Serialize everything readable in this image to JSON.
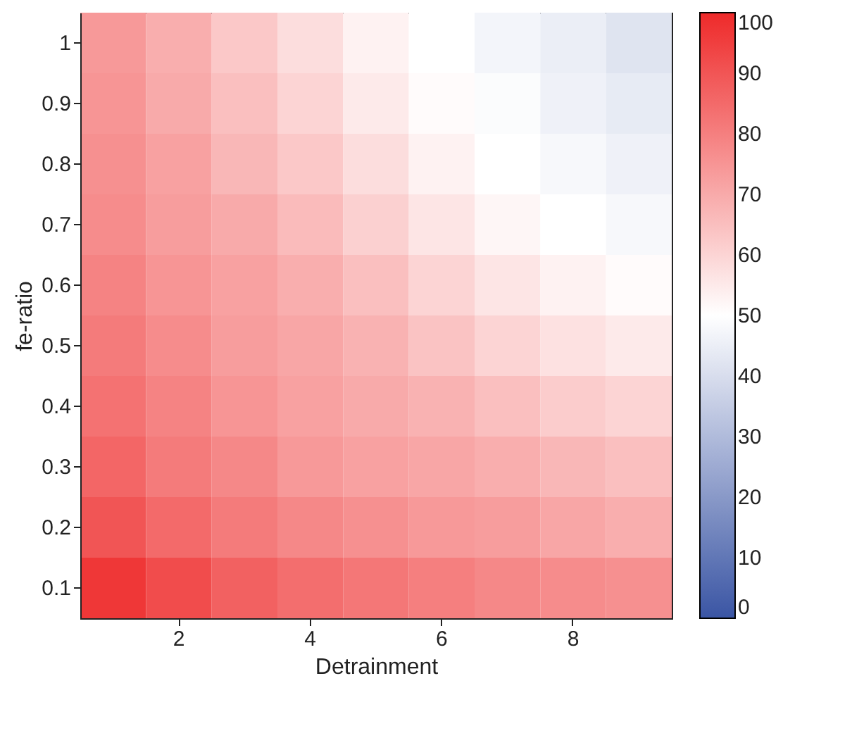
{
  "chart_data": {
    "type": "heatmap",
    "xlabel": "Detrainment",
    "ylabel": "fe-ratio",
    "categories": [
      null,
      "2",
      null,
      "4",
      null,
      "6",
      null,
      "8",
      null
    ],
    "y_categories": [
      "1",
      "0.9",
      "0.8",
      "0.7",
      "0.6",
      "0.5",
      "0.4",
      "0.3",
      "0.2",
      "0.1"
    ],
    "cells": [
      [
        74,
        69,
        63,
        58,
        53,
        50,
        47,
        45,
        42
      ],
      [
        75,
        70,
        65,
        60,
        55,
        51,
        49,
        46,
        44
      ],
      [
        76,
        72,
        67,
        63,
        58,
        53,
        50,
        48,
        46
      ],
      [
        77,
        73,
        70,
        66,
        61,
        56,
        52,
        50,
        48
      ],
      [
        79,
        75,
        72,
        69,
        65,
        60,
        56,
        53,
        51
      ],
      [
        81,
        77,
        73,
        71,
        68,
        64,
        60,
        57,
        55
      ],
      [
        83,
        79,
        75,
        72,
        70,
        68,
        65,
        62,
        60
      ],
      [
        86,
        81,
        78,
        74,
        72,
        71,
        69,
        67,
        65
      ],
      [
        90,
        85,
        81,
        78,
        76,
        74,
        73,
        71,
        69
      ],
      [
        97,
        92,
        87,
        84,
        82,
        80,
        78,
        77,
        76
      ]
    ],
    "clim": [
      0,
      100
    ],
    "cticks": [
      0,
      10,
      20,
      30,
      40,
      50,
      60,
      70,
      80,
      90,
      100
    ],
    "colors": [
      "#3a55a4",
      "#ffffff",
      "#ee2a2a"
    ]
  }
}
